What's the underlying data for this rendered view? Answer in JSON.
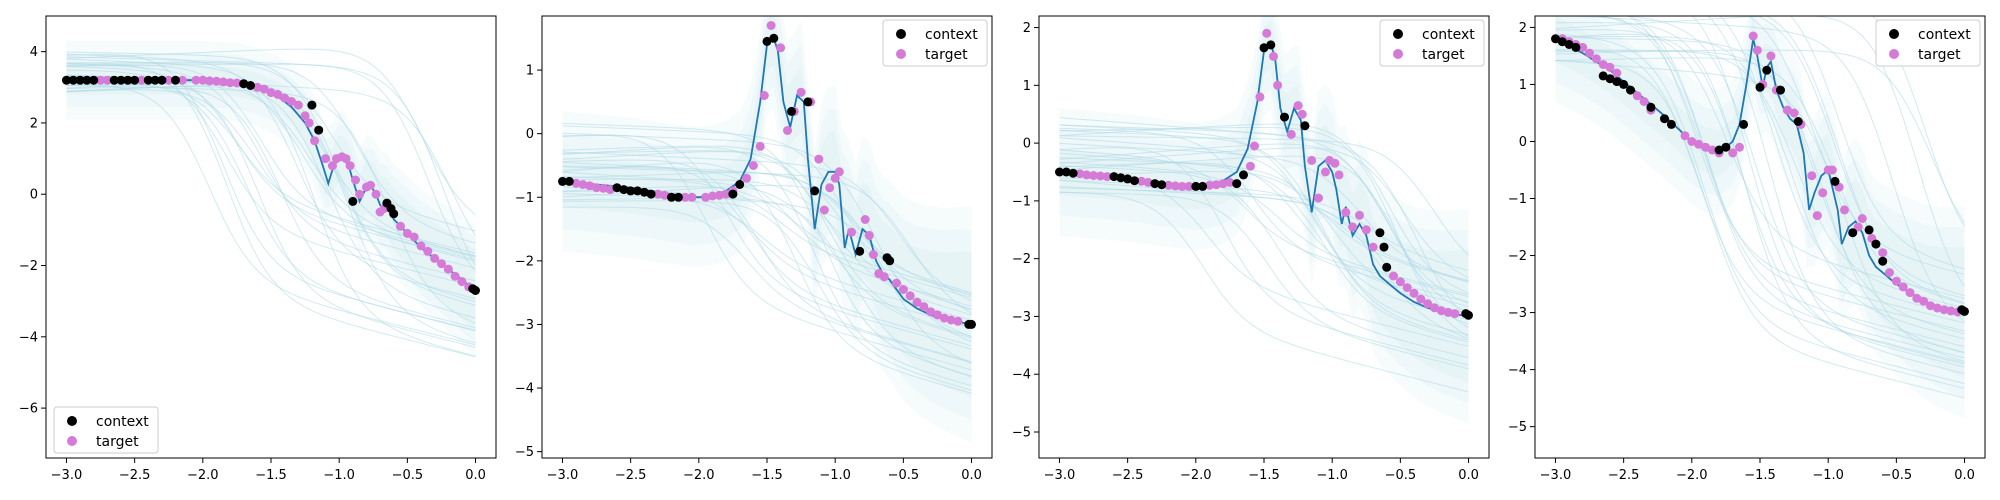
{
  "chart_data": [
    {
      "type": "scatter",
      "legend": {
        "location": "lower-left",
        "entries": [
          "context",
          "target"
        ]
      },
      "xlim": [
        -3.15,
        0.15
      ],
      "ylim": [
        -7.4,
        5.0
      ],
      "xticks": [
        -3.0,
        -2.5,
        -2.0,
        -1.5,
        -1.0,
        -0.5,
        0.0
      ],
      "xtick_labels": [
        "−3.0",
        "−2.5",
        "−2.0",
        "−1.5",
        "−1.0",
        "−0.5",
        "0.0"
      ],
      "yticks": [
        -6,
        -4,
        -2,
        0,
        2,
        4
      ],
      "ytick_labels": [
        "−6",
        "−4",
        "−2",
        "0",
        "2",
        "4"
      ],
      "colors": {
        "context": "#000000",
        "target": "#d67ad8",
        "mean": "#1f77b4",
        "samples": "#add8e6"
      },
      "mean_curve": {
        "x": [
          -3.0,
          -2.5,
          -2.0,
          -1.75,
          -1.6,
          -1.45,
          -1.35,
          -1.25,
          -1.18,
          -1.12,
          -1.08,
          -1.04,
          -1.0,
          -0.97,
          -0.93,
          -0.9,
          -0.85,
          -0.8,
          -0.77,
          -0.73,
          -0.7,
          -0.67,
          -0.63,
          -0.6,
          -0.55,
          -0.5,
          -0.4,
          -0.3,
          -0.2,
          -0.1,
          0.0
        ],
        "y": [
          3.2,
          3.2,
          3.2,
          3.15,
          3.0,
          2.75,
          2.45,
          2.0,
          1.5,
          0.8,
          0.3,
          0.8,
          1.0,
          1.0,
          0.8,
          0.4,
          -0.2,
          0.2,
          0.25,
          0.0,
          -0.3,
          -0.4,
          -0.35,
          -0.7,
          -0.9,
          -1.1,
          -1.5,
          -1.8,
          -2.1,
          -2.4,
          -2.7
        ]
      },
      "context": {
        "x": [
          -3.0,
          -2.95,
          -2.9,
          -2.85,
          -2.8,
          -2.65,
          -2.6,
          -2.55,
          -2.5,
          -2.4,
          -2.35,
          -2.3,
          -2.2,
          -1.7,
          -1.65,
          -1.2,
          -1.15,
          -0.9,
          -0.65,
          -0.62,
          -0.6,
          -0.02,
          0.0
        ],
        "y": [
          3.2,
          3.2,
          3.2,
          3.2,
          3.2,
          3.2,
          3.2,
          3.2,
          3.2,
          3.2,
          3.2,
          3.2,
          3.2,
          3.1,
          3.05,
          2.5,
          1.8,
          -0.2,
          -0.25,
          -0.4,
          -0.55,
          -2.65,
          -2.7
        ]
      },
      "target": {
        "x": [
          -3.0,
          -2.9,
          -2.85,
          -2.75,
          -2.7,
          -2.65,
          -2.55,
          -2.45,
          -2.3,
          -2.25,
          -2.15,
          -2.05,
          -2.0,
          -1.95,
          -1.9,
          -1.85,
          -1.8,
          -1.75,
          -1.7,
          -1.6,
          -1.55,
          -1.5,
          -1.45,
          -1.4,
          -1.35,
          -1.3,
          -1.25,
          -1.22,
          -1.18,
          -1.1,
          -1.05,
          -1.02,
          -0.98,
          -0.95,
          -0.92,
          -0.88,
          -0.85,
          -0.8,
          -0.77,
          -0.73,
          -0.7,
          -0.67,
          -0.55,
          -0.5,
          -0.45,
          -0.4,
          -0.35,
          -0.3,
          -0.25,
          -0.2,
          -0.15,
          -0.1,
          -0.05
        ],
        "y": [
          3.2,
          3.2,
          3.2,
          3.2,
          3.2,
          3.2,
          3.2,
          3.2,
          3.2,
          3.2,
          3.2,
          3.2,
          3.2,
          3.18,
          3.17,
          3.15,
          3.13,
          3.12,
          3.1,
          3.0,
          2.95,
          2.85,
          2.8,
          2.7,
          2.6,
          2.5,
          2.2,
          2.0,
          1.5,
          1.0,
          0.8,
          1.0,
          1.05,
          1.0,
          0.8,
          0.4,
          0.0,
          0.2,
          0.25,
          0.0,
          -0.5,
          -0.4,
          -0.9,
          -1.1,
          -1.2,
          -1.45,
          -1.6,
          -1.8,
          -1.95,
          -2.1,
          -2.3,
          -2.45,
          -2.6
        ]
      }
    },
    {
      "type": "scatter",
      "legend": {
        "location": "top-right",
        "entries": [
          "context",
          "target"
        ]
      },
      "xlim": [
        -3.15,
        0.15
      ],
      "ylim": [
        -5.1,
        1.85
      ],
      "xticks": [
        -3.0,
        -2.5,
        -2.0,
        -1.5,
        -1.0,
        -0.5,
        0.0
      ],
      "xtick_labels": [
        "−3.0",
        "−2.5",
        "−2.0",
        "−1.5",
        "−1.0",
        "−0.5",
        "0.0"
      ],
      "yticks": [
        -5,
        -4,
        -3,
        -2,
        -1,
        0,
        1
      ],
      "ytick_labels": [
        "−5",
        "−4",
        "−3",
        "−2",
        "−1",
        "0",
        "1"
      ],
      "colors": {
        "context": "#000000",
        "target": "#d67ad8",
        "mean": "#1f77b4",
        "samples": "#add8e6"
      },
      "mean_curve": {
        "x": [
          -3.0,
          -2.5,
          -2.2,
          -2.0,
          -1.9,
          -1.8,
          -1.7,
          -1.62,
          -1.55,
          -1.5,
          -1.45,
          -1.42,
          -1.38,
          -1.33,
          -1.28,
          -1.23,
          -1.2,
          -1.15,
          -1.1,
          -1.05,
          -1.0,
          -0.97,
          -0.93,
          -0.9,
          -0.85,
          -0.8,
          -0.75,
          -0.7,
          -0.65,
          -0.6,
          -0.5,
          -0.4,
          -0.3,
          -0.2,
          -0.1,
          0.0
        ],
        "y": [
          -0.75,
          -0.85,
          -0.95,
          -1.0,
          -0.97,
          -0.9,
          -0.75,
          -0.4,
          0.5,
          1.4,
          1.5,
          1.3,
          0.5,
          0.1,
          0.6,
          0.5,
          -0.4,
          -1.5,
          -0.8,
          -0.6,
          -0.6,
          -0.8,
          -1.8,
          -1.5,
          -1.9,
          -1.5,
          -1.6,
          -2.0,
          -2.2,
          -2.3,
          -2.6,
          -2.75,
          -2.85,
          -2.92,
          -2.96,
          -3.0
        ]
      },
      "context": {
        "x": [
          -3.0,
          -2.95,
          -2.6,
          -2.55,
          -2.5,
          -2.45,
          -2.4,
          -2.35,
          -2.2,
          -2.15,
          -1.75,
          -1.7,
          -1.5,
          -1.45,
          -1.32,
          -1.2,
          -1.15,
          -0.82,
          -0.62,
          -0.6,
          -0.02,
          0.0
        ],
        "y": [
          -0.75,
          -0.75,
          -0.85,
          -0.88,
          -0.9,
          -0.9,
          -0.92,
          -0.95,
          -1.0,
          -1.0,
          -0.95,
          -0.8,
          1.45,
          1.5,
          0.35,
          0.5,
          -0.9,
          -1.85,
          -1.95,
          -2.0,
          -3.0,
          -3.0
        ]
      },
      "target": {
        "x": [
          -2.9,
          -2.85,
          -2.8,
          -2.75,
          -2.7,
          -2.65,
          -2.3,
          -2.25,
          -2.1,
          -2.05,
          -1.95,
          -1.9,
          -1.85,
          -1.8,
          -1.75,
          -1.65,
          -1.6,
          -1.55,
          -1.52,
          -1.47,
          -1.4,
          -1.35,
          -1.3,
          -1.25,
          -1.18,
          -1.12,
          -1.08,
          -1.04,
          -1.0,
          -0.97,
          -0.88,
          -0.78,
          -0.75,
          -0.72,
          -0.68,
          -0.64,
          -0.55,
          -0.5,
          -0.45,
          -0.4,
          -0.35,
          -0.3,
          -0.25,
          -0.2,
          -0.15,
          -0.1
        ],
        "y": [
          -0.78,
          -0.8,
          -0.82,
          -0.85,
          -0.86,
          -0.88,
          -0.95,
          -0.97,
          -1.0,
          -1.0,
          -1.0,
          -0.98,
          -0.97,
          -0.95,
          -0.9,
          -0.7,
          -0.5,
          -0.2,
          0.6,
          1.7,
          1.35,
          0.05,
          0.35,
          0.65,
          0.5,
          -0.4,
          -1.2,
          -0.85,
          -0.7,
          -0.6,
          -1.55,
          -1.35,
          -1.6,
          -1.9,
          -2.2,
          -2.25,
          -2.35,
          -2.45,
          -2.55,
          -2.65,
          -2.72,
          -2.8,
          -2.85,
          -2.9,
          -2.93,
          -2.95
        ]
      }
    },
    {
      "type": "scatter",
      "legend": {
        "location": "top-right",
        "entries": [
          "context",
          "target"
        ]
      },
      "xlim": [
        -3.15,
        0.15
      ],
      "ylim": [
        -5.45,
        2.2
      ],
      "xticks": [
        -3.0,
        -2.5,
        -2.0,
        -1.5,
        -1.0,
        -0.5,
        0.0
      ],
      "xtick_labels": [
        "−3.0",
        "−2.5",
        "−2.0",
        "−1.5",
        "−1.0",
        "−0.5",
        "0.0"
      ],
      "yticks": [
        -5,
        -4,
        -3,
        -2,
        -1,
        0,
        1,
        2
      ],
      "ytick_labels": [
        "−5",
        "−4",
        "−3",
        "−2",
        "−1",
        "0",
        "1",
        "2"
      ],
      "colors": {
        "context": "#000000",
        "target": "#d67ad8",
        "mean": "#1f77b4",
        "samples": "#add8e6"
      },
      "mean_curve": {
        "x": [
          -3.0,
          -2.5,
          -2.2,
          -2.0,
          -1.9,
          -1.8,
          -1.7,
          -1.62,
          -1.55,
          -1.5,
          -1.45,
          -1.42,
          -1.38,
          -1.33,
          -1.28,
          -1.23,
          -1.2,
          -1.15,
          -1.1,
          -1.05,
          -1.0,
          -0.97,
          -0.93,
          -0.9,
          -0.85,
          -0.8,
          -0.75,
          -0.7,
          -0.65,
          -0.6,
          -0.5,
          -0.4,
          -0.3,
          -0.2,
          -0.1,
          0.0
        ],
        "y": [
          -0.5,
          -0.6,
          -0.7,
          -0.75,
          -0.72,
          -0.65,
          -0.5,
          -0.1,
          0.7,
          1.6,
          1.7,
          1.5,
          0.6,
          0.2,
          0.6,
          0.4,
          -0.4,
          -1.2,
          -0.4,
          -0.3,
          -0.5,
          -0.8,
          -1.4,
          -1.1,
          -1.6,
          -1.4,
          -1.6,
          -2.1,
          -2.3,
          -2.4,
          -2.6,
          -2.75,
          -2.85,
          -2.92,
          -2.96,
          -3.0
        ]
      },
      "context": {
        "x": [
          -3.0,
          -2.95,
          -2.9,
          -2.6,
          -2.55,
          -2.5,
          -2.45,
          -2.3,
          -2.25,
          -2.0,
          -1.95,
          -1.7,
          -1.65,
          -1.5,
          -1.45,
          -1.35,
          -1.2,
          -0.65,
          -0.62,
          -0.6,
          -0.02,
          0.0
        ],
        "y": [
          -0.5,
          -0.5,
          -0.52,
          -0.58,
          -0.6,
          -0.62,
          -0.65,
          -0.7,
          -0.72,
          -0.75,
          -0.75,
          -0.7,
          -0.55,
          1.65,
          1.7,
          0.45,
          0.3,
          -1.55,
          -1.8,
          -2.15,
          -2.95,
          -2.98
        ]
      },
      "target": {
        "x": [
          -2.85,
          -2.8,
          -2.75,
          -2.7,
          -2.65,
          -2.4,
          -2.35,
          -2.2,
          -2.15,
          -2.1,
          -2.05,
          -1.9,
          -1.85,
          -1.8,
          -1.75,
          -1.6,
          -1.57,
          -1.53,
          -1.48,
          -1.43,
          -1.4,
          -1.3,
          -1.25,
          -1.22,
          -1.15,
          -1.1,
          -1.05,
          -1.02,
          -0.98,
          -0.95,
          -0.9,
          -0.85,
          -0.8,
          -0.75,
          -0.7,
          -0.55,
          -0.5,
          -0.45,
          -0.4,
          -0.35,
          -0.3,
          -0.25,
          -0.2,
          -0.15,
          -0.1
        ],
        "y": [
          -0.53,
          -0.55,
          -0.56,
          -0.57,
          -0.58,
          -0.66,
          -0.68,
          -0.73,
          -0.74,
          -0.75,
          -0.75,
          -0.73,
          -0.72,
          -0.7,
          -0.68,
          -0.4,
          -0.05,
          0.8,
          1.9,
          1.5,
          1.0,
          0.15,
          0.65,
          0.5,
          -0.3,
          -0.95,
          -0.5,
          -0.3,
          -0.35,
          -0.55,
          -1.2,
          -1.45,
          -1.25,
          -1.5,
          -1.8,
          -2.3,
          -2.4,
          -2.5,
          -2.6,
          -2.7,
          -2.78,
          -2.85,
          -2.9,
          -2.93,
          -2.95
        ]
      }
    },
    {
      "type": "scatter",
      "legend": {
        "location": "top-right",
        "entries": [
          "context",
          "target"
        ]
      },
      "xlim": [
        -3.15,
        0.15
      ],
      "ylim": [
        -5.55,
        2.2
      ],
      "xticks": [
        -3.0,
        -2.5,
        -2.0,
        -1.5,
        -1.0,
        -0.5,
        0.0
      ],
      "xtick_labels": [
        "−3.0",
        "−2.5",
        "−2.0",
        "−1.5",
        "−1.0",
        "−0.5",
        "0.0"
      ],
      "yticks": [
        -5,
        -4,
        -3,
        -2,
        -1,
        0,
        1,
        2
      ],
      "ytick_labels": [
        "−5",
        "−4",
        "−3",
        "−2",
        "−1",
        "0",
        "1",
        "2"
      ],
      "colors": {
        "context": "#000000",
        "target": "#d67ad8",
        "mean": "#1f77b4",
        "samples": "#add8e6"
      },
      "mean_curve": {
        "x": [
          -3.0,
          -2.8,
          -2.6,
          -2.4,
          -2.2,
          -2.0,
          -1.9,
          -1.8,
          -1.75,
          -1.7,
          -1.65,
          -1.6,
          -1.55,
          -1.52,
          -1.48,
          -1.45,
          -1.42,
          -1.38,
          -1.33,
          -1.28,
          -1.23,
          -1.18,
          -1.14,
          -1.1,
          -1.05,
          -1.0,
          -0.97,
          -0.93,
          -0.9,
          -0.85,
          -0.8,
          -0.75,
          -0.7,
          -0.65,
          -0.6,
          -0.5,
          -0.4,
          -0.3,
          -0.2,
          -0.1,
          0.0
        ],
        "y": [
          1.8,
          1.55,
          1.25,
          0.85,
          0.45,
          0.0,
          -0.15,
          -0.2,
          -0.1,
          0.0,
          0.3,
          1.0,
          1.8,
          1.5,
          0.95,
          1.3,
          1.4,
          0.9,
          0.6,
          0.4,
          0.3,
          -0.2,
          -1.2,
          -0.9,
          -0.6,
          -0.5,
          -0.8,
          -1.2,
          -1.8,
          -1.5,
          -1.4,
          -1.6,
          -2.0,
          -2.2,
          -2.3,
          -2.5,
          -2.65,
          -2.8,
          -2.9,
          -2.95,
          -3.0
        ]
      },
      "context": {
        "x": [
          -3.0,
          -2.95,
          -2.9,
          -2.85,
          -2.65,
          -2.6,
          -2.55,
          -2.5,
          -2.45,
          -2.3,
          -2.2,
          -2.15,
          -1.8,
          -1.75,
          -1.62,
          -1.5,
          -1.45,
          -1.35,
          -1.22,
          -0.95,
          -0.82,
          -0.7,
          -0.65,
          -0.6,
          -0.02,
          0.0
        ],
        "y": [
          1.8,
          1.75,
          1.7,
          1.65,
          1.15,
          1.1,
          1.05,
          1.0,
          0.9,
          0.6,
          0.4,
          0.3,
          -0.15,
          -0.1,
          0.3,
          0.95,
          1.25,
          0.9,
          0.35,
          -0.7,
          -1.6,
          -1.55,
          -1.8,
          -2.1,
          -2.95,
          -2.98
        ]
      },
      "target": {
        "x": [
          -2.95,
          -2.9,
          -2.85,
          -2.8,
          -2.75,
          -2.7,
          -2.65,
          -2.6,
          -2.55,
          -2.4,
          -2.35,
          -2.3,
          -2.05,
          -2.0,
          -1.95,
          -1.9,
          -1.85,
          -1.8,
          -1.7,
          -1.65,
          -1.55,
          -1.52,
          -1.48,
          -1.42,
          -1.38,
          -1.3,
          -1.25,
          -1.2,
          -1.12,
          -1.08,
          -1.04,
          -1.0,
          -0.97,
          -0.92,
          -0.88,
          -0.78,
          -0.75,
          -0.68,
          -0.6,
          -0.55,
          -0.5,
          -0.45,
          -0.4,
          -0.35,
          -0.3,
          -0.25,
          -0.2,
          -0.15,
          -0.1,
          -0.05
        ],
        "y": [
          1.8,
          1.75,
          1.7,
          1.65,
          1.55,
          1.45,
          1.35,
          1.3,
          1.2,
          0.8,
          0.7,
          0.55,
          0.1,
          0.0,
          -0.05,
          -0.1,
          -0.15,
          -0.2,
          -0.2,
          -0.1,
          1.85,
          1.6,
          1.0,
          1.5,
          0.9,
          0.55,
          0.5,
          0.3,
          -0.6,
          -1.3,
          -0.9,
          -0.5,
          -0.5,
          -0.8,
          -1.2,
          -1.5,
          -1.35,
          -1.7,
          -1.95,
          -2.3,
          -2.45,
          -2.55,
          -2.65,
          -2.75,
          -2.8,
          -2.88,
          -2.92,
          -2.95,
          -2.97,
          -2.99
        ]
      }
    }
  ]
}
